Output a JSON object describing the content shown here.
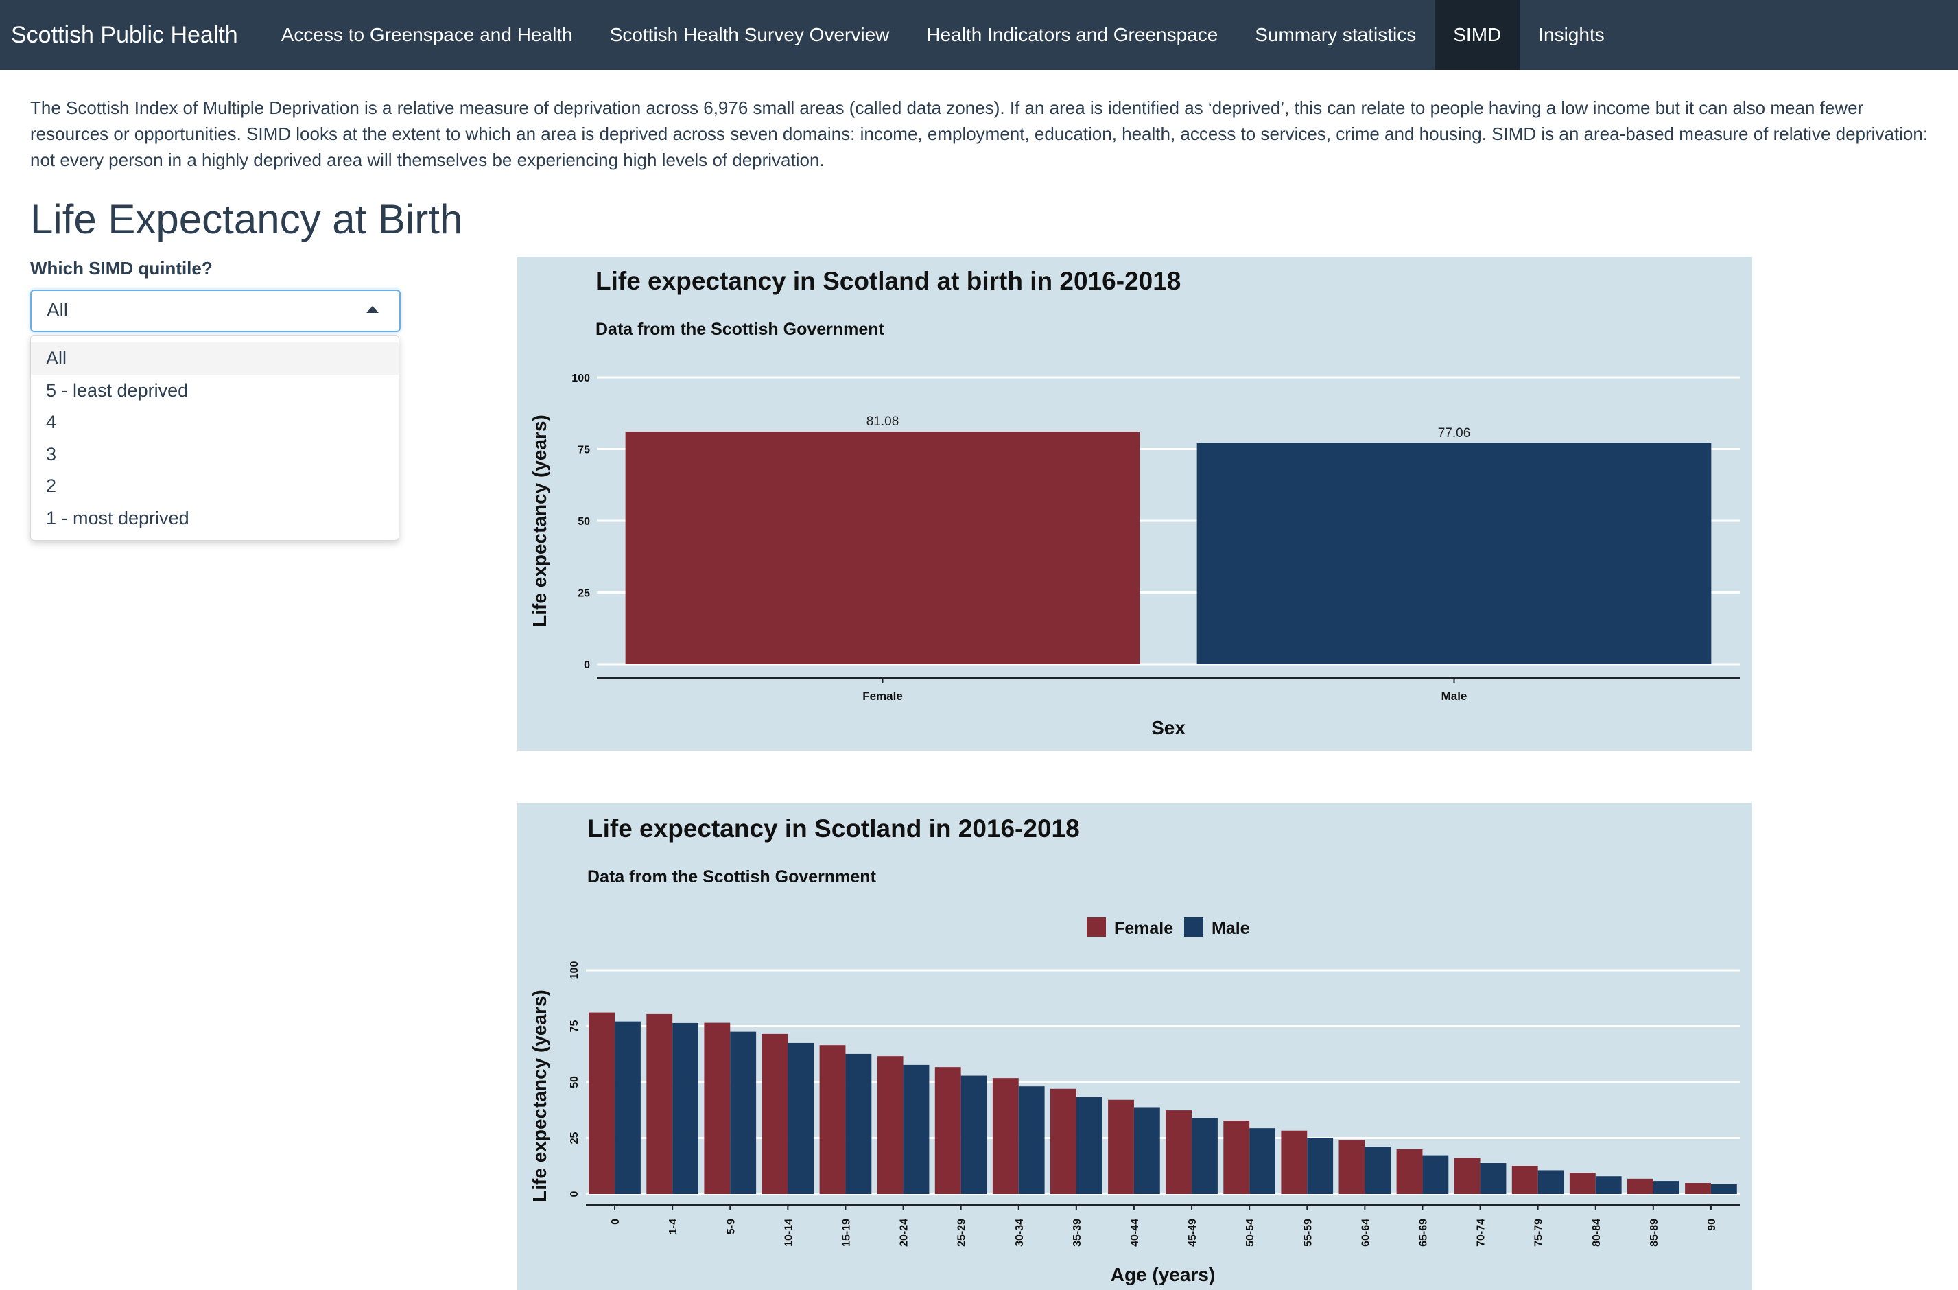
{
  "navbar": {
    "brand": "Scottish Public Health",
    "items": [
      {
        "label": "Access to Greenspace and Health",
        "active": false
      },
      {
        "label": "Scottish Health Survey Overview",
        "active": false
      },
      {
        "label": "Health Indicators and Greenspace",
        "active": false
      },
      {
        "label": "Summary statistics",
        "active": false
      },
      {
        "label": "SIMD",
        "active": true
      },
      {
        "label": "Insights",
        "active": false
      }
    ]
  },
  "intro": "The Scottish Index of Multiple Deprivation is a relative measure of deprivation across 6,976 small areas (called data zones). If an area is identified as ‘deprived’, this can relate to people having a low income but it can also mean fewer resources or opportunities. SIMD looks at the extent to which an area is deprived across seven domains: income, employment, education, health, access to services, crime and housing. SIMD is an area-based measure of relative deprivation: not every person in a highly deprived area will themselves be experiencing high levels of deprivation.",
  "page_title": "Life Expectancy at Birth",
  "quintile_select": {
    "label": "Which SIMD quintile?",
    "value": "All",
    "options": [
      "All",
      "5 - least deprived",
      "4",
      "3",
      "2",
      "1 - most deprived"
    ]
  },
  "colors": {
    "female": "#832c36",
    "male": "#1a3c63",
    "panel_bg": "#d0e1e9",
    "navbar_bg": "#2c3e50",
    "navbar_active": "#1a242f"
  },
  "chart_data": [
    {
      "type": "bar",
      "title": "Life expectancy in Scotland at birth in 2016-2018",
      "subtitle": "Data from the Scottish Government",
      "xlabel": "Sex",
      "ylabel": "Life expectancy (years)",
      "categories": [
        "Female",
        "Male"
      ],
      "values": [
        81.08,
        77.06
      ],
      "value_labels": [
        "81.08",
        "77.06"
      ],
      "ylim": [
        0,
        100
      ],
      "yticks": [
        0,
        25,
        50,
        75,
        100
      ],
      "grid": true,
      "legend": "none"
    },
    {
      "type": "bar",
      "title": "Life expectancy in Scotland in 2016-2018",
      "subtitle": "Data from the Scottish Government",
      "xlabel": "Age (years)",
      "ylabel": "Life expectancy (years)",
      "categories": [
        "0",
        "1-4",
        "5-9",
        "10-14",
        "15-19",
        "20-24",
        "25-29",
        "30-34",
        "35-39",
        "40-44",
        "45-49",
        "50-54",
        "55-59",
        "60-64",
        "65-69",
        "70-74",
        "75-79",
        "80-84",
        "85-89",
        "90"
      ],
      "series": [
        {
          "name": "Female",
          "values": [
            81.1,
            80.4,
            76.5,
            71.5,
            66.5,
            61.6,
            56.7,
            51.8,
            47.0,
            42.1,
            37.4,
            32.8,
            28.3,
            24.1,
            20.0,
            16.1,
            12.5,
            9.4,
            6.8,
            4.9
          ]
        },
        {
          "name": "Male",
          "values": [
            77.1,
            76.4,
            72.5,
            67.5,
            62.6,
            57.7,
            52.9,
            48.1,
            43.3,
            38.5,
            33.9,
            29.4,
            25.1,
            21.1,
            17.3,
            13.8,
            10.6,
            7.9,
            5.8,
            4.3
          ]
        }
      ],
      "ylim": [
        0,
        100
      ],
      "yticks": [
        0,
        25,
        50,
        75,
        100
      ],
      "grid": true,
      "legend": "top"
    }
  ]
}
